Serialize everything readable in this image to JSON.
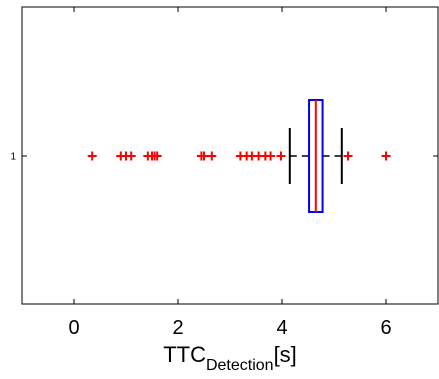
{
  "chart_data": {
    "type": "boxplot",
    "orientation": "horizontal",
    "categories": [
      "1"
    ],
    "xlabel_main": "TTC",
    "xlabel_sub": "Detection",
    "xlabel_suffix": "[s]",
    "xlim": [
      -1,
      7
    ],
    "xticks": [
      0,
      2,
      4,
      6
    ],
    "xtick_labels": [
      "0",
      "2",
      "4",
      "6"
    ],
    "grid": false,
    "box": {
      "whisker_low": 4.15,
      "q1": 4.52,
      "median": 4.65,
      "q3": 4.78,
      "whisker_high": 5.15
    },
    "outliers": [
      0.35,
      0.9,
      1.0,
      1.1,
      1.42,
      1.5,
      1.55,
      1.6,
      2.45,
      2.5,
      2.65,
      3.2,
      3.32,
      3.42,
      3.55,
      3.68,
      3.78,
      3.98,
      5.27,
      6.0
    ],
    "colors": {
      "box": "#0000ff",
      "median": "#ff0000",
      "whisker": "#000000",
      "outlier": "#ff0000",
      "axes": "#000000"
    }
  }
}
